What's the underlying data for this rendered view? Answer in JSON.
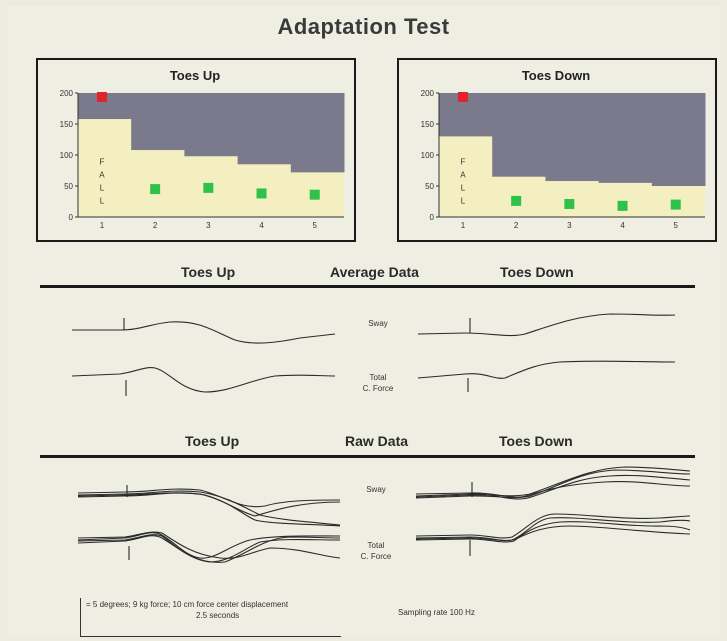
{
  "title": "Adaptation Test",
  "chart_data": [
    {
      "type": "area",
      "title": "Toes Up",
      "categories": [
        "1",
        "2",
        "3",
        "4",
        "5"
      ],
      "yticks": [
        "0",
        "50",
        "100",
        "150",
        "200"
      ],
      "ylim": [
        0,
        200
      ],
      "fall_text": [
        "F",
        "A",
        "L",
        "L"
      ],
      "series": [
        {
          "values": [
            200,
            45,
            47,
            38,
            36
          ],
          "point_colors": [
            "#e0242a",
            "#2fc24a",
            "#2fc24a",
            "#2fc24a",
            "#2fc24a"
          ]
        }
      ],
      "band_upper": [
        158,
        108,
        98,
        85,
        72
      ],
      "colors": {
        "band": "#7b7a8c",
        "fill": "#f4efc0"
      }
    },
    {
      "type": "area",
      "title": "Toes Down",
      "categories": [
        "1",
        "2",
        "3",
        "4",
        "5"
      ],
      "yticks": [
        "0",
        "50",
        "100",
        "150",
        "200"
      ],
      "ylim": [
        0,
        200
      ],
      "fall_text": [
        "F",
        "A",
        "L",
        "L"
      ],
      "series": [
        {
          "values": [
            200,
            26,
            21,
            18,
            20
          ],
          "point_colors": [
            "#e0242a",
            "#2fc24a",
            "#2fc24a",
            "#2fc24a",
            "#2fc24a"
          ]
        }
      ],
      "band_upper": [
        130,
        65,
        58,
        55,
        50
      ],
      "colors": {
        "band": "#7b7a8c",
        "fill": "#f4efc0"
      }
    }
  ],
  "average": {
    "left_label": "Toes Up",
    "center_label": "Average Data",
    "right_label": "Toes Down",
    "sway_label": "Sway",
    "force_label_1": "Total",
    "force_label_2": "C. Force"
  },
  "raw": {
    "left_label": "Toes Up",
    "center_label": "Raw Data",
    "right_label": "Toes Down",
    "sway_label": "Sway",
    "force_label_1": "Total",
    "force_label_2": "C. Force"
  },
  "footer": {
    "scale_line_1": "= 5 degrees; 9 kg force; 10 cm force center displacement",
    "scale_line_2": "2.5 seconds",
    "sampling": "Sampling rate 100 Hz"
  }
}
